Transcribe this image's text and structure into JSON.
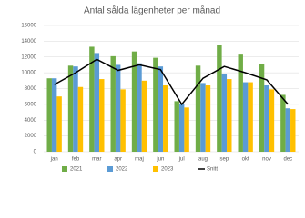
{
  "chart_data": {
    "type": "bar",
    "title": "Antal sålda lägenheter per månad",
    "categories": [
      "jan",
      "feb",
      "mar",
      "apr",
      "maj",
      "jun",
      "jul",
      "aug",
      "sep",
      "okt",
      "nov",
      "dec"
    ],
    "series": [
      {
        "name": "2021",
        "color": "#70ad47",
        "values": [
          9300,
          10900,
          13300,
          12100,
          12700,
          11900,
          6400,
          10900,
          13500,
          12300,
          11100,
          7200
        ]
      },
      {
        "name": "2022",
        "color": "#5b9bd5",
        "values": [
          9300,
          10800,
          12500,
          11000,
          11200,
          10800,
          6000,
          8700,
          9800,
          8800,
          8400,
          5500
        ]
      },
      {
        "name": "2023",
        "color": "#ffc000",
        "values": [
          7000,
          8200,
          9200,
          7900,
          9000,
          8400,
          5600,
          8400,
          9200,
          8800,
          7900,
          5400
        ]
      },
      {
        "name": "Snitt",
        "color": "#000000",
        "type": "line",
        "values": [
          8500,
          10000,
          11700,
          10300,
          11000,
          10400,
          6000,
          9300,
          10800,
          10000,
          9100,
          6000
        ]
      }
    ],
    "ylim": [
      0,
      16000
    ],
    "yticks": [
      0,
      2000,
      4000,
      6000,
      8000,
      10000,
      12000,
      14000,
      16000
    ],
    "grid": true
  }
}
